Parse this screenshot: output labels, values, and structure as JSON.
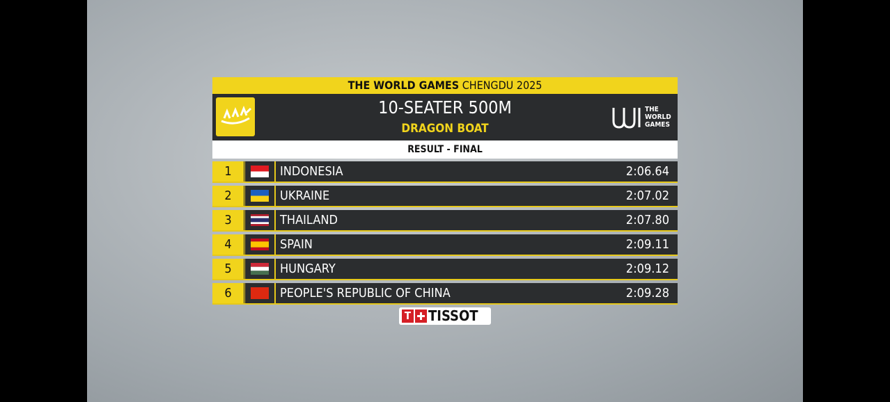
{
  "header": {
    "event": "THE WORLD GAMES",
    "edition": "CHENGDU 2025",
    "title": "10-SEATER 500M",
    "subtitle": "DRAGON BOAT",
    "logo_lines": [
      "THE",
      "WORLD",
      "GAMES"
    ],
    "stage": "RESULT - FINAL"
  },
  "table": {
    "rows": [
      {
        "rank": 1,
        "country": "INDONESIA",
        "time": "2:06.64"
      },
      {
        "rank": 2,
        "country": "UKRAINE",
        "time": "2:07.02"
      },
      {
        "rank": 3,
        "country": "THAILAND",
        "time": "2:07.80"
      },
      {
        "rank": 4,
        "country": "SPAIN",
        "time": "2:09.11"
      },
      {
        "rank": 5,
        "country": "HUNGARY",
        "time": "2:09.12"
      },
      {
        "rank": 6,
        "country": "PEOPLE'S REPUBLIC OF CHINA",
        "time": "2:09.28"
      }
    ]
  },
  "sponsor": {
    "mark": "T",
    "name": "TISSOT"
  }
}
